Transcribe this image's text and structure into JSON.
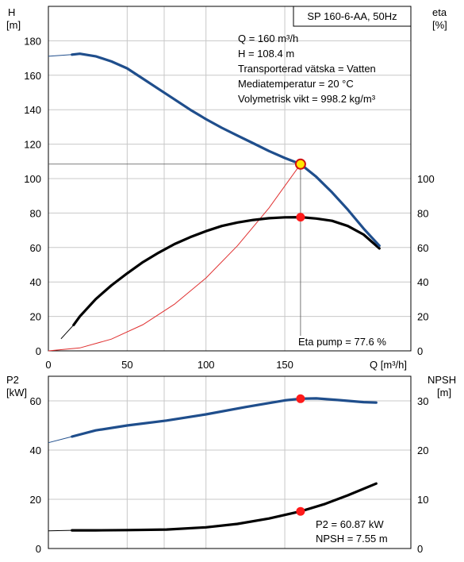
{
  "chart_data": [
    {
      "type": "line",
      "title": "SP 160-6-AA, 50Hz",
      "left_axis": {
        "label_line1": "H",
        "label_line2": "[m]",
        "range": [
          0,
          200
        ],
        "ticks": [
          0,
          20,
          40,
          60,
          80,
          100,
          120,
          140,
          160,
          180
        ]
      },
      "right_axis": {
        "label_line1": "eta",
        "label_line2": "[%]",
        "range": [
          0,
          200
        ],
        "ticks": [
          0,
          20,
          40,
          60,
          80,
          100
        ]
      },
      "x_axis": {
        "label": "Q [m³/h]",
        "range": [
          0,
          230
        ],
        "ticks": [
          0,
          50,
          100,
          150
        ]
      },
      "grid": true,
      "info_lines": [
        "Q = 160 m³/h",
        "H = 108.4 m",
        "Transporterad vätska = Vatten",
        "Mediatemperatur = 20 °C",
        "Volymetrisk vikt = 998.2 kg/m³"
      ],
      "eta_label": "Eta pump = 77.6 %",
      "duty_point": {
        "q": 160,
        "h": 108.4,
        "eta": 77.6
      },
      "series": [
        {
          "key": "head",
          "color": "#1f4e8c",
          "thin": [
            [
              0,
              171
            ],
            [
              15,
              172
            ]
          ],
          "thick": [
            [
              15,
              172
            ],
            [
              20,
              172.5
            ],
            [
              30,
              171
            ],
            [
              40,
              168
            ],
            [
              50,
              164
            ],
            [
              60,
              158
            ],
            [
              70,
              152
            ],
            [
              80,
              146
            ],
            [
              90,
              140
            ],
            [
              100,
              134.5
            ],
            [
              110,
              129.5
            ],
            [
              120,
              125
            ],
            [
              130,
              120.5
            ],
            [
              140,
              116
            ],
            [
              150,
              112
            ],
            [
              160,
              108.4
            ],
            [
              170,
              101
            ],
            [
              180,
              92
            ],
            [
              190,
              82
            ],
            [
              200,
              71
            ],
            [
              210,
              61
            ]
          ]
        },
        {
          "key": "eta",
          "color": "#000000",
          "thin": [
            [
              8,
              7
            ],
            [
              16,
              15
            ]
          ],
          "thick": [
            [
              16,
              15
            ],
            [
              20,
              20
            ],
            [
              30,
              30
            ],
            [
              40,
              38
            ],
            [
              50,
              45
            ],
            [
              60,
              51.5
            ],
            [
              70,
              57
            ],
            [
              80,
              62
            ],
            [
              90,
              66
            ],
            [
              100,
              69.5
            ],
            [
              110,
              72.5
            ],
            [
              120,
              74.5
            ],
            [
              130,
              76
            ],
            [
              140,
              77
            ],
            [
              150,
              77.5
            ],
            [
              160,
              77.6
            ],
            [
              170,
              76.8
            ],
            [
              180,
              75.5
            ],
            [
              190,
              72.5
            ],
            [
              200,
              67.5
            ],
            [
              210,
              59.5
            ]
          ]
        },
        {
          "key": "system",
          "color": "#e03030",
          "thin": [
            [
              0,
              0
            ],
            [
              20,
              1.7
            ],
            [
              40,
              6.8
            ],
            [
              60,
              15.2
            ],
            [
              80,
              27.1
            ],
            [
              100,
              42.3
            ],
            [
              120,
              61
            ],
            [
              140,
              83
            ],
            [
              160,
              108.4
            ]
          ],
          "thick": []
        }
      ]
    },
    {
      "type": "line",
      "left_axis": {
        "label_line1": "P2",
        "label_line2": "[kW]",
        "range": [
          0,
          70
        ],
        "ticks": [
          0,
          20,
          40,
          60
        ]
      },
      "right_axis": {
        "label_line1": "NPSH",
        "label_line2": "[m]",
        "range": [
          0,
          35
        ],
        "ticks": [
          0,
          10,
          20,
          30
        ]
      },
      "x_axis": {
        "range": [
          0,
          230
        ],
        "ticks": [
          0,
          50,
          100,
          150
        ]
      },
      "grid": true,
      "info_lines": [
        "P2 = 60.87 kW",
        "NPSH = 7.55 m"
      ],
      "duty_point": {
        "q": 160,
        "p2": 60.87,
        "npsh": 7.55
      },
      "series": [
        {
          "key": "p2",
          "color": "#1f4e8c",
          "thin": [
            [
              0,
              43
            ],
            [
              15,
              45.5
            ]
          ],
          "thick": [
            [
              15,
              45.5
            ],
            [
              30,
              48
            ],
            [
              50,
              50
            ],
            [
              75,
              52
            ],
            [
              100,
              54.5
            ],
            [
              125,
              57.5
            ],
            [
              150,
              60.2
            ],
            [
              160,
              60.87
            ],
            [
              170,
              61
            ],
            [
              185,
              60.3
            ],
            [
              200,
              59.5
            ],
            [
              208,
              59.3
            ]
          ]
        },
        {
          "key": "npsh",
          "color": "#000000",
          "thin": [
            [
              0,
              3.6
            ],
            [
              15,
              3.7
            ]
          ],
          "thick": [
            [
              15,
              3.7
            ],
            [
              30,
              3.7
            ],
            [
              50,
              3.75
            ],
            [
              75,
              3.85
            ],
            [
              100,
              4.3
            ],
            [
              120,
              5
            ],
            [
              140,
              6.1
            ],
            [
              160,
              7.55
            ],
            [
              175,
              9
            ],
            [
              190,
              10.8
            ],
            [
              208,
              13.2
            ]
          ]
        }
      ]
    }
  ]
}
